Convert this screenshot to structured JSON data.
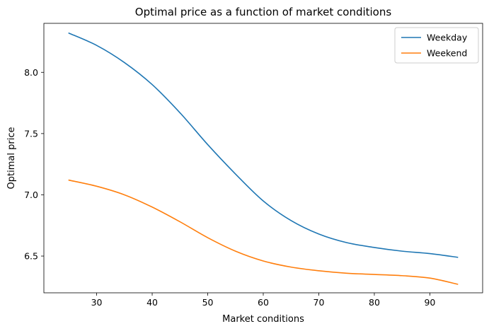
{
  "chart_data": {
    "type": "line",
    "title": "Optimal price as a function of market conditions",
    "xlabel": "Market conditions",
    "ylabel": "Optimal price",
    "xlim": [
      20.5,
      99.5
    ],
    "ylim": [
      6.2,
      8.4
    ],
    "xticks": [
      30,
      40,
      50,
      60,
      70,
      80,
      90
    ],
    "xtick_labels": [
      "30",
      "40",
      "50",
      "60",
      "70",
      "80",
      "90"
    ],
    "yticks": [
      6.5,
      7.0,
      7.5,
      8.0
    ],
    "ytick_labels": [
      "6.5",
      "7.0",
      "7.5",
      "8.0"
    ],
    "grid": false,
    "legend_position": "top-right",
    "x": [
      25,
      30,
      35,
      40,
      45,
      50,
      55,
      60,
      65,
      70,
      75,
      80,
      85,
      90,
      95
    ],
    "series": [
      {
        "name": "Weekday",
        "color": "#1f77b4",
        "values": [
          8.32,
          8.22,
          8.08,
          7.9,
          7.67,
          7.41,
          7.17,
          6.95,
          6.79,
          6.68,
          6.61,
          6.57,
          6.54,
          6.52,
          6.49
        ]
      },
      {
        "name": "Weekend",
        "color": "#ff7f0e",
        "values": [
          7.12,
          7.07,
          7.0,
          6.9,
          6.78,
          6.65,
          6.54,
          6.46,
          6.41,
          6.38,
          6.36,
          6.35,
          6.34,
          6.32,
          6.27
        ]
      }
    ]
  }
}
